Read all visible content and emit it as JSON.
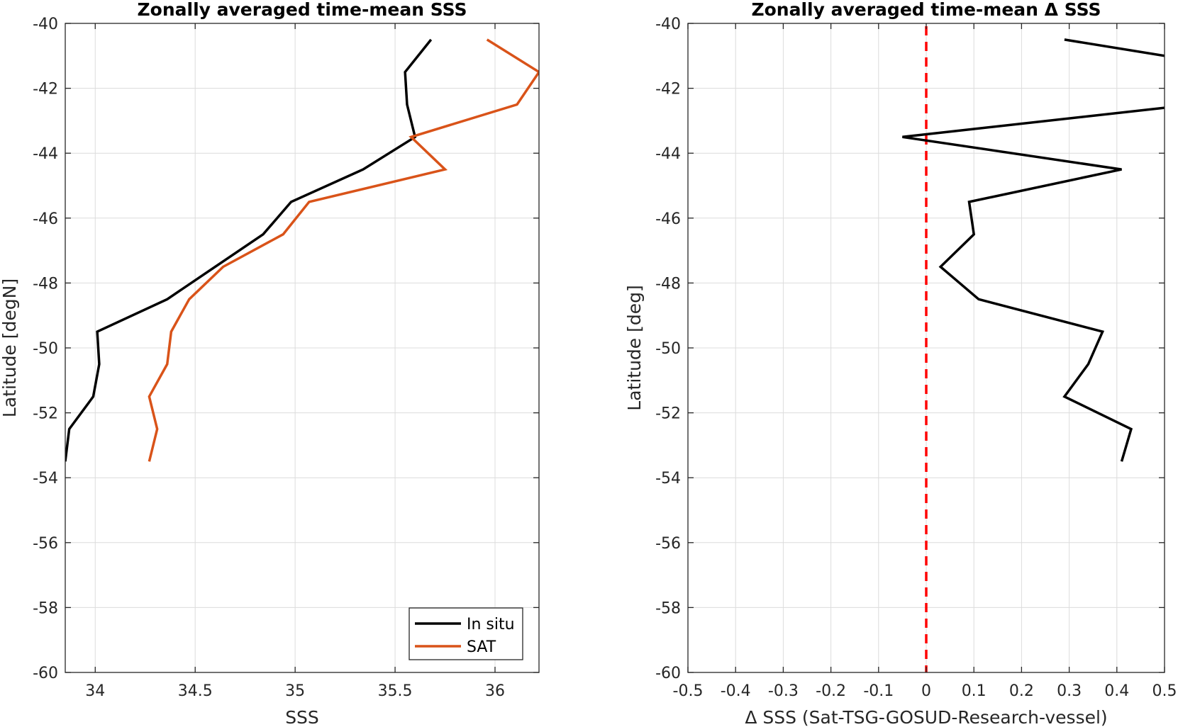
{
  "chart_data": [
    {
      "type": "line",
      "title": "Zonally averaged time-mean SSS",
      "xlabel": "SSS",
      "ylabel": "Latitude [degN]",
      "xlim": [
        33.85,
        36.22
      ],
      "ylim": [
        -60,
        -40
      ],
      "xticks": [
        34,
        34.5,
        35,
        35.5,
        36
      ],
      "xtick_labels": [
        "34",
        "34.5",
        "35",
        "35.5",
        "36"
      ],
      "yticks": [
        -60,
        -58,
        -56,
        -54,
        -52,
        -50,
        -48,
        -46,
        -44,
        -42,
        -40
      ],
      "ytick_labels": [
        "-60",
        "-58",
        "-56",
        "-54",
        "-52",
        "-50",
        "-48",
        "-46",
        "-44",
        "-42",
        "-40"
      ],
      "grid": true,
      "legend_position": "bottom-right",
      "series": [
        {
          "name": "In situ",
          "color": "#000000",
          "x": [
            35.68,
            35.55,
            35.56,
            35.6,
            35.34,
            34.98,
            34.84,
            34.36,
            34.01,
            34.02,
            33.99,
            33.87,
            33.85
          ],
          "y": [
            -40.5,
            -41.5,
            -42.5,
            -43.5,
            -44.5,
            -45.5,
            -46.5,
            -48.5,
            -49.5,
            -50.5,
            -51.5,
            -52.5,
            -53.5
          ]
        },
        {
          "name": "SAT",
          "color": "#D95319",
          "x": [
            35.96,
            36.22,
            36.11,
            35.58,
            35.75,
            35.07,
            34.94,
            34.64,
            34.47,
            34.38,
            34.36,
            34.27,
            34.31,
            34.27
          ],
          "y": [
            -40.5,
            -41.5,
            -42.5,
            -43.5,
            -44.5,
            -45.5,
            -46.5,
            -47.5,
            -48.5,
            -49.5,
            -50.5,
            -51.5,
            -52.5,
            -53.5
          ]
        }
      ]
    },
    {
      "type": "line",
      "title": "Zonally averaged time-mean Δ SSS",
      "xlabel": "Δ SSS (Sat-TSG-GOSUD-Research-vessel)",
      "ylabel": "Latitude [deg]",
      "xlim": [
        -0.5,
        0.5
      ],
      "ylim": [
        -60,
        -40
      ],
      "xticks": [
        -0.5,
        -0.4,
        -0.3,
        -0.2,
        -0.1,
        0,
        0.1,
        0.2,
        0.3,
        0.4,
        0.5
      ],
      "xtick_labels": [
        "-0.5",
        "-0.4",
        "-0.3",
        "-0.2",
        "-0.1",
        "0",
        "0.1",
        "0.2",
        "0.3",
        "0.4",
        "0.5"
      ],
      "yticks": [
        -60,
        -58,
        -56,
        -54,
        -52,
        -50,
        -48,
        -46,
        -44,
        -42,
        -40
      ],
      "ytick_labels": [
        "-60",
        "-58",
        "-56",
        "-54",
        "-52",
        "-50",
        "-48",
        "-46",
        "-44",
        "-42",
        "-40"
      ],
      "grid": true,
      "reference_line": {
        "x": 0,
        "color": "#FF0000",
        "style": "dashed"
      },
      "series": [
        {
          "color": "#000000",
          "x": [
            0.29,
            0.5,
            null,
            0.5,
            -0.05,
            0.41,
            0.09,
            0.1,
            0.03,
            0.11,
            0.37,
            0.34,
            0.29,
            0.43,
            0.41
          ],
          "y": [
            -40.5,
            -41.0,
            null,
            -42.6,
            -43.5,
            -44.5,
            -45.5,
            -46.5,
            -47.5,
            -48.5,
            -49.5,
            -50.5,
            -51.5,
            -52.5,
            -53.5
          ]
        }
      ]
    }
  ]
}
